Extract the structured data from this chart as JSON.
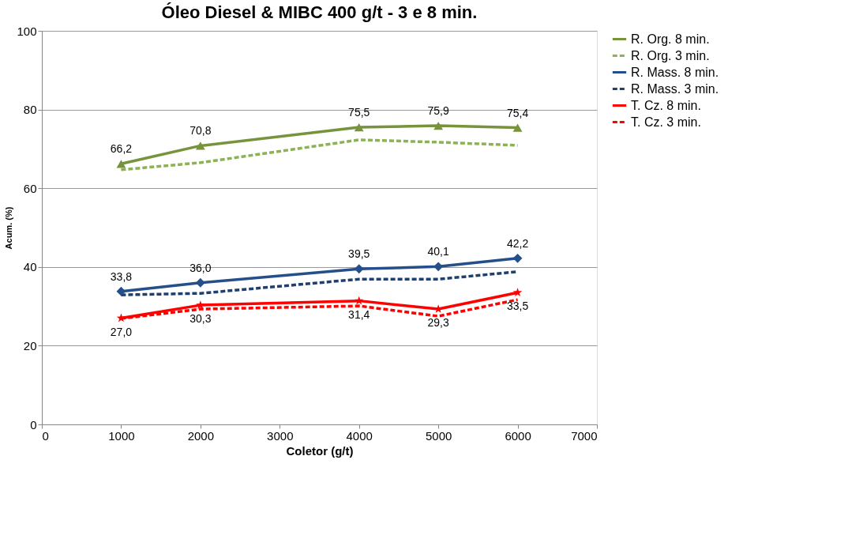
{
  "chart_data": {
    "type": "line",
    "title": "Óleo Diesel & MIBC 400 g/t - 3 e 8 min.",
    "xlabel": "Coletor  (g/t)",
    "ylabel": "Acum. (%)",
    "x": [
      1000,
      2000,
      4000,
      5000,
      6000
    ],
    "xlim": [
      0,
      7000
    ],
    "xticks": [
      0,
      1000,
      2000,
      3000,
      4000,
      5000,
      6000,
      7000
    ],
    "ylim": [
      0,
      100
    ],
    "yticks": [
      0,
      20,
      40,
      60,
      80,
      100
    ],
    "grid": "y",
    "legend": "right",
    "series": [
      {
        "name": "R. Org. 8 min.",
        "color": "#77933c",
        "marker": "triangle",
        "line_style": "solid",
        "values": [
          66.2,
          70.8,
          75.5,
          75.9,
          75.4
        ],
        "value_labels": [
          "66,2",
          "70,8",
          "75,5",
          "75,9",
          "75,4"
        ]
      },
      {
        "name": "R. Org. 3 min.",
        "color": "#8db255",
        "marker": "none",
        "line_style": "dashed",
        "values": [
          64.7,
          66.5,
          72.3,
          71.7,
          70.9
        ]
      },
      {
        "name": "R. Mass. 8 min.",
        "color": "#254f8a",
        "marker": "diamond",
        "line_style": "solid",
        "values": [
          33.8,
          36.0,
          39.5,
          40.1,
          42.2
        ],
        "value_labels": [
          "33,8",
          "36,0",
          "39,5",
          "40,1",
          "42,2"
        ]
      },
      {
        "name": "R. Mass. 3 min.",
        "color": "#1f3f6e",
        "marker": "none",
        "line_style": "dashed",
        "values": [
          32.9,
          33.3,
          36.9,
          36.9,
          38.8
        ]
      },
      {
        "name": "T. Cz. 8 min.",
        "color": "#ff0000",
        "marker": "star",
        "line_style": "solid",
        "values": [
          27.0,
          30.3,
          31.4,
          29.3,
          33.5
        ],
        "value_labels": [
          "27,0",
          "30,3",
          "31,4",
          "29,3",
          "33,5"
        ]
      },
      {
        "name": "T. Cz. 3 min.",
        "color": "#ff0000",
        "marker": "none",
        "line_style": "dashed",
        "values": [
          26.9,
          29.3,
          30.1,
          27.5,
          31.7
        ]
      }
    ]
  }
}
